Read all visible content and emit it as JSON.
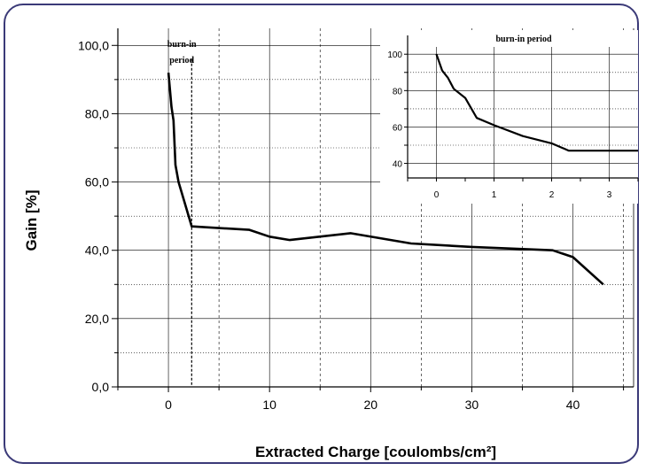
{
  "chart_data": [
    {
      "type": "line",
      "xlabel": "Extracted Charge [coulombs/cm²]",
      "ylabel": "Gain [%]",
      "xlim": [
        -5,
        46
      ],
      "ylim": [
        0,
        105
      ],
      "x_ticks": [
        0,
        10,
        20,
        30,
        40
      ],
      "y_ticks": [
        0,
        20,
        40,
        60,
        80,
        100
      ],
      "y_tick_labels": [
        "0,0",
        "20,0",
        "40,0",
        "60,0",
        "80,0",
        "100,0"
      ],
      "grid": true,
      "annotation": "burn-in period",
      "burn_in_end": 2.3,
      "series": [
        {
          "x": [
            0,
            0.3,
            0.5,
            0.7,
            1.0,
            1.5,
            2.3,
            8,
            10,
            12,
            18,
            24,
            30,
            38,
            40,
            43
          ],
          "y": [
            92,
            82,
            78,
            65,
            60,
            55,
            47,
            46,
            44,
            43,
            45,
            42,
            41,
            40,
            38,
            30
          ]
        }
      ]
    },
    {
      "type": "line",
      "title": "burn-in period",
      "xlim": [
        -0.5,
        3.5
      ],
      "ylim": [
        32,
        104
      ],
      "x_ticks": [
        0,
        1,
        2,
        3
      ],
      "y_ticks": [
        40,
        60,
        80,
        100
      ],
      "grid": true,
      "series": [
        {
          "x": [
            0,
            0.1,
            0.2,
            0.3,
            0.5,
            0.7,
            1.0,
            1.5,
            2.0,
            2.3,
            2.8,
            3.5
          ],
          "y": [
            100,
            91,
            87,
            81,
            76,
            65,
            61,
            55,
            51,
            47,
            47,
            47
          ]
        }
      ]
    }
  ]
}
